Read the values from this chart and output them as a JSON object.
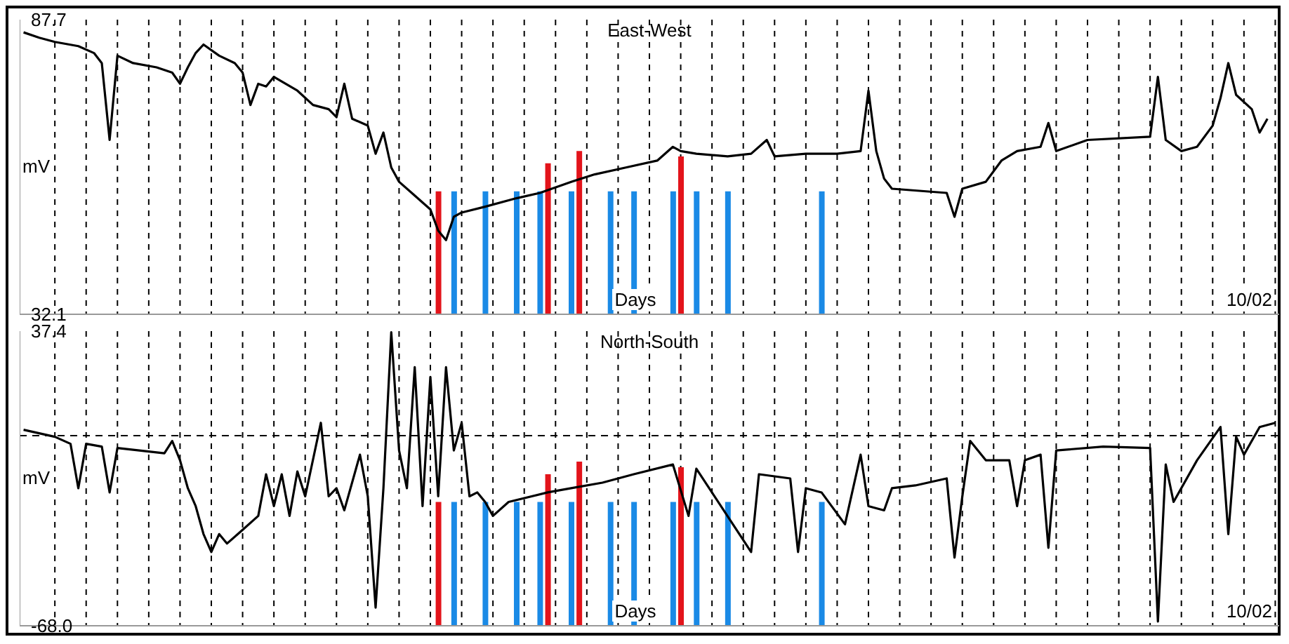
{
  "chart_data": [
    {
      "type": "line",
      "title": "East-West",
      "xlabel": "Days",
      "ylabel": "mV",
      "annotations": [
        "10/02"
      ],
      "ylim": [
        32.1,
        87.7
      ],
      "yticks": [
        32.1,
        87.7
      ],
      "grid": "x",
      "categories": [
        null,
        null,
        null,
        null,
        null,
        null,
        null,
        null,
        null,
        null,
        null,
        null,
        null,
        null,
        null,
        null,
        null,
        null,
        null,
        null,
        null,
        null,
        null,
        null,
        null,
        null,
        null,
        null,
        null,
        null,
        null,
        null,
        null,
        null,
        null,
        null,
        null,
        null,
        null,
        null,
        null,
        null,
        null,
        null,
        null,
        null,
        null,
        null,
        null,
        null,
        null,
        null,
        null,
        null,
        null,
        null,
        null,
        null,
        null,
        null,
        null,
        null,
        null,
        null,
        null,
        null,
        null,
        null,
        null,
        null,
        null,
        null,
        null,
        null,
        null,
        null,
        null,
        null,
        null,
        null,
        null,
        null,
        null,
        null,
        null,
        null,
        null,
        null,
        null,
        null,
        null,
        null,
        null,
        null,
        null,
        null,
        null,
        null,
        null,
        null,
        null,
        null,
        null,
        null,
        null,
        null,
        null,
        null,
        null,
        null,
        null,
        null,
        null,
        null,
        null,
        null,
        null,
        null,
        null,
        null,
        null,
        null,
        null,
        null,
        null,
        null,
        null,
        null,
        null,
        null,
        null,
        null,
        null,
        null,
        null,
        null,
        null,
        null,
        null,
        null,
        null,
        null,
        null,
        null,
        null,
        null,
        null,
        null,
        null,
        null,
        null,
        null,
        null,
        null,
        null,
        null,
        null,
        null,
        null,
        null,
        null
      ],
      "series": [
        {
          "color": "#000000",
          "values": [
            85.3,
            null,
            84.3,
            null,
            83.5,
            null,
            null,
            82.7,
            null,
            81.4,
            79.5,
            65.0,
            80.9,
            null,
            79.5,
            null,
            null,
            78.7,
            null,
            77.7,
            75.6,
            78.7,
            81.4,
            83.0,
            null,
            80.9,
            null,
            79.5,
            77.7,
            71.6,
            75.6,
            75.1,
            76.9,
            null,
            null,
            74.3,
            null,
            71.6,
            null,
            70.8,
            69.3,
            75.6,
            69.0,
            null,
            67.7,
            62.4,
            66.4,
            59.8,
            57.1,
            null,
            54.5,
            null,
            51.9,
            47.9,
            46.1,
            50.5,
            51.3,
            null,
            null,
            52.4,
            null,
            null,
            null,
            54.0,
            null,
            null,
            55.0,
            null,
            null,
            null,
            57.1,
            null,
            null,
            58.5,
            null,
            null,
            null,
            59.8,
            null,
            null,
            null,
            61.1,
            null,
            63.7,
            62.9,
            null,
            62.4,
            null,
            null,
            null,
            61.9,
            null,
            null,
            62.4,
            null,
            65.0,
            61.9,
            null,
            null,
            null,
            62.4,
            null,
            null,
            null,
            62.4,
            null,
            null,
            62.9,
            74.3,
            62.9,
            57.7,
            55.8,
            null,
            null,
            null,
            null,
            null,
            null,
            55.0,
            50.5,
            55.8,
            null,
            null,
            57.1,
            null,
            61.1,
            null,
            62.9,
            null,
            null,
            63.7,
            68.2,
            62.9,
            null,
            null,
            null,
            65.0,
            null,
            null,
            null,
            null,
            null,
            null,
            null,
            65.6,
            76.9,
            65.0,
            null,
            62.9,
            null,
            63.7,
            null,
            67.7,
            72.9,
            79.5,
            73.5,
            null,
            70.8,
            66.4,
            69.0,
            null
          ]
        },
        {
          "type": "bar",
          "color": "#1a8ae6",
          "values": [
            null,
            null,
            null,
            null,
            null,
            null,
            null,
            null,
            null,
            null,
            null,
            null,
            null,
            null,
            null,
            null,
            null,
            null,
            null,
            null,
            null,
            null,
            null,
            null,
            null,
            null,
            null,
            null,
            null,
            null,
            null,
            null,
            null,
            null,
            null,
            null,
            null,
            null,
            null,
            null,
            null,
            null,
            null,
            null,
            null,
            null,
            null,
            null,
            null,
            null,
            null,
            null,
            null,
            null,
            null,
            23.2,
            null,
            null,
            null,
            23.2,
            null,
            null,
            null,
            23.2,
            null,
            null,
            23.2,
            null,
            null,
            null,
            23.2,
            null,
            null,
            null,
            null,
            23.2,
            null,
            null,
            23.2,
            null,
            null,
            null,
            null,
            23.2,
            null,
            null,
            23.2,
            null,
            null,
            null,
            23.2,
            null,
            null,
            null,
            null,
            null,
            null,
            null,
            null,
            null,
            null,
            null,
            23.2,
            null,
            null,
            null,
            null,
            null,
            null,
            null,
            null,
            null,
            null,
            null,
            null,
            null,
            null,
            null,
            null,
            null,
            null,
            null,
            null,
            null,
            null,
            null,
            null,
            null,
            null,
            null,
            null,
            null,
            null,
            null,
            null,
            null,
            null,
            null,
            null,
            null,
            null,
            null,
            null,
            null,
            null,
            null,
            null,
            null,
            null,
            null,
            null,
            null,
            null,
            null,
            null,
            null,
            null,
            null,
            null,
            null,
            null
          ],
          "base": [
            null,
            null,
            null,
            null,
            null,
            null,
            null,
            null,
            null,
            null,
            null,
            null,
            null,
            null,
            null,
            null,
            null,
            null,
            null,
            null,
            null,
            null,
            null,
            null,
            null,
            null,
            null,
            null,
            null,
            null,
            null,
            null,
            null,
            null,
            null,
            null,
            null,
            null,
            null,
            null,
            null,
            null,
            null,
            null,
            null,
            null,
            null,
            null,
            null,
            null,
            null,
            null,
            null,
            null,
            null,
            32.1,
            null,
            null,
            null,
            32.1,
            null,
            null,
            null,
            32.1,
            null,
            null,
            32.1,
            null,
            null,
            null,
            32.1,
            null,
            null,
            null,
            null,
            32.1,
            null,
            null,
            32.1,
            null,
            null,
            null,
            null,
            32.1,
            null,
            null,
            32.1,
            null,
            null,
            null,
            32.1,
            null,
            null,
            null,
            null,
            null,
            null,
            null,
            null,
            null,
            null,
            null,
            32.1,
            null,
            null,
            null,
            null,
            null,
            null,
            null,
            null,
            null,
            null,
            null,
            null,
            null,
            null,
            null,
            null,
            null,
            null,
            null,
            null,
            null,
            null,
            null,
            null,
            null,
            null,
            null,
            null,
            null,
            null,
            null,
            null,
            null,
            null,
            null,
            null,
            null,
            null,
            null,
            null,
            null,
            null,
            null,
            null,
            null,
            null,
            null,
            null,
            null,
            null,
            null,
            null,
            null,
            null,
            null,
            null,
            null,
            null
          ]
        },
        {
          "type": "bar",
          "color": "#e3141b",
          "values": [
            null,
            null,
            null,
            null,
            null,
            null,
            null,
            null,
            null,
            null,
            null,
            null,
            null,
            null,
            null,
            null,
            null,
            null,
            null,
            null,
            null,
            null,
            null,
            null,
            null,
            null,
            null,
            null,
            null,
            null,
            null,
            null,
            null,
            null,
            null,
            null,
            null,
            null,
            null,
            null,
            null,
            null,
            null,
            null,
            null,
            null,
            null,
            null,
            null,
            null,
            null,
            null,
            null,
            23.2,
            null,
            null,
            null,
            null,
            null,
            null,
            null,
            null,
            null,
            null,
            null,
            null,
            null,
            28.5,
            null,
            null,
            null,
            30.8,
            null,
            null,
            null,
            null,
            null,
            null,
            null,
            null,
            null,
            null,
            null,
            null,
            29.8,
            null,
            null,
            null,
            null,
            null,
            null,
            null,
            null,
            null,
            null,
            null,
            null,
            null,
            null,
            null,
            null,
            null,
            null,
            null,
            null,
            null,
            null,
            null,
            null,
            null,
            null,
            null,
            null,
            null,
            null,
            null,
            null,
            null,
            null,
            null,
            null,
            null,
            null,
            null,
            null,
            null,
            null,
            null,
            null,
            null,
            null,
            null,
            null,
            null,
            null,
            null,
            null,
            null,
            null,
            null,
            null,
            null,
            null,
            null,
            null,
            null,
            null,
            null,
            null,
            null,
            null,
            null,
            null,
            null,
            null,
            null,
            null,
            null,
            null,
            null,
            null
          ],
          "base": [
            null,
            null,
            null,
            null,
            null,
            null,
            null,
            null,
            null,
            null,
            null,
            null,
            null,
            null,
            null,
            null,
            null,
            null,
            null,
            null,
            null,
            null,
            null,
            null,
            null,
            null,
            null,
            null,
            null,
            null,
            null,
            null,
            null,
            null,
            null,
            null,
            null,
            null,
            null,
            null,
            null,
            null,
            null,
            null,
            null,
            null,
            null,
            null,
            null,
            null,
            null,
            null,
            null,
            32.1,
            null,
            null,
            null,
            null,
            null,
            null,
            null,
            null,
            null,
            null,
            null,
            null,
            null,
            32.1,
            null,
            null,
            null,
            32.1,
            null,
            null,
            null,
            null,
            null,
            null,
            null,
            null,
            null,
            null,
            null,
            null,
            32.1,
            null,
            null,
            null,
            null,
            null,
            null,
            null,
            null,
            null,
            null,
            null,
            null,
            null,
            null,
            null,
            null,
            null,
            null,
            null,
            null,
            null,
            null,
            null,
            null,
            null,
            null,
            null,
            null,
            null,
            null,
            null,
            null,
            null,
            null,
            null,
            null,
            null,
            null,
            null,
            null,
            null,
            null,
            null,
            null,
            null,
            null,
            null,
            null,
            null,
            null,
            null,
            null,
            null,
            null,
            null,
            null,
            null,
            null,
            null,
            null,
            null,
            null,
            null,
            null,
            null,
            null,
            null,
            null,
            null,
            null,
            null,
            null,
            null,
            null,
            null,
            null
          ]
        }
      ]
    },
    {
      "type": "line",
      "title": "North-South",
      "xlabel": "Days",
      "ylabel": "mV",
      "annotations": [
        "10/02"
      ],
      "ylim": [
        -68.0,
        37.4
      ],
      "yticks": [
        {
          "value": -68.0,
          "label": "-68.0"
        },
        37.4
      ],
      "grid": "x",
      "categories": [
        null,
        null,
        null,
        null,
        null,
        null,
        null,
        null,
        null,
        null,
        null,
        null,
        null,
        null,
        null,
        null,
        null,
        null,
        null,
        null,
        null,
        null,
        null,
        null,
        null,
        null,
        null,
        null,
        null,
        null,
        null,
        null,
        null,
        null,
        null,
        null,
        null,
        null,
        null,
        null,
        null,
        null,
        null,
        null,
        null,
        null,
        null,
        null,
        null,
        null,
        null,
        null,
        null,
        null,
        null,
        null,
        null,
        null,
        null,
        null,
        null,
        null,
        null,
        null,
        null,
        null,
        null,
        null,
        null,
        null,
        null,
        null,
        null,
        null,
        null,
        null,
        null,
        null,
        null,
        null,
        null,
        null,
        null,
        null,
        null,
        null,
        null,
        null,
        null,
        null,
        null,
        null,
        null,
        null,
        null,
        null,
        null,
        null,
        null,
        null,
        null,
        null,
        null,
        null,
        null,
        null,
        null,
        null,
        null,
        null,
        null,
        null,
        null,
        null,
        null,
        null,
        null,
        null,
        null,
        null,
        null,
        null,
        null,
        null,
        null,
        null,
        null,
        null,
        null,
        null,
        null,
        null,
        null,
        null,
        null,
        null,
        null,
        null,
        null,
        null,
        null,
        null,
        null,
        null,
        null,
        null,
        null,
        null,
        null,
        null,
        null,
        null,
        null,
        null,
        null,
        null,
        null,
        null,
        null,
        null,
        null
      ],
      "series": [
        {
          "color": "#000000",
          "values": [
            2.1,
            null,
            null,
            null,
            -0.4,
            null,
            -2.9,
            -18.8,
            -2.9,
            null,
            -3.9,
            -20.3,
            -4.4,
            null,
            null,
            null,
            null,
            null,
            -6.3,
            -1.9,
            -8.8,
            -18.8,
            -25.2,
            -35.2,
            -41.6,
            -35.2,
            -38.6,
            null,
            -33.7,
            null,
            -28.7,
            -13.8,
            -25.2,
            -13.8,
            -28.7,
            -12.8,
            -21.7,
            null,
            4.6,
            -21.7,
            -18.8,
            -26.7,
            null,
            -6.8,
            -21.7,
            -61.5,
            -18.8,
            37.0,
            -5.3,
            -18.8,
            24.5,
            -25.2,
            21.0,
            -21.7,
            24.5,
            -5.3,
            4.6,
            -21.7,
            -20.3,
            -23.7,
            -28.7,
            null,
            -23.7,
            null,
            null,
            null,
            null,
            -20.3,
            null,
            null,
            -18.8,
            null,
            null,
            null,
            -16.8,
            null,
            null,
            null,
            -13.8,
            null,
            null,
            null,
            null,
            -10.3,
            null,
            -28.7,
            -11.8,
            null,
            null,
            null,
            null,
            null,
            null,
            -41.6,
            -13.8,
            null,
            null,
            null,
            -15.3,
            -41.6,
            -18.8,
            null,
            -20.3,
            null,
            null,
            -31.7,
            null,
            -6.8,
            -25.2,
            null,
            -26.7,
            -18.8,
            null,
            null,
            -17.8,
            null,
            null,
            null,
            -15.3,
            -43.6,
            -21.7,
            -1.9,
            null,
            -8.8,
            null,
            null,
            -8.8,
            -25.2,
            -8.8,
            null,
            -6.8,
            -40.1,
            -5.3,
            null,
            null,
            null,
            null,
            null,
            -3.9,
            null,
            null,
            null,
            null,
            null,
            -4.4,
            -66.5,
            -10.3,
            -23.7,
            null,
            null,
            -8.8,
            null,
            null,
            3.1,
            -35.2,
            -0.4,
            -6.8,
            null,
            3.1,
            null,
            4.6
          ]
        },
        {
          "type": "bar",
          "color": "#1a8ae6",
          "values": [
            null,
            null,
            null,
            null,
            null,
            null,
            null,
            null,
            null,
            null,
            null,
            null,
            null,
            null,
            null,
            null,
            null,
            null,
            null,
            null,
            null,
            null,
            null,
            null,
            null,
            null,
            null,
            null,
            null,
            null,
            null,
            null,
            null,
            null,
            null,
            null,
            null,
            null,
            null,
            null,
            null,
            null,
            null,
            null,
            null,
            null,
            null,
            null,
            null,
            null,
            null,
            null,
            null,
            null,
            null,
            44.3,
            null,
            null,
            null,
            44.3,
            null,
            null,
            null,
            44.3,
            null,
            null,
            44.3,
            null,
            null,
            null,
            44.3,
            null,
            null,
            null,
            null,
            44.3,
            null,
            null,
            44.3,
            null,
            null,
            null,
            null,
            44.3,
            null,
            null,
            44.3,
            null,
            null,
            null,
            44.3,
            null,
            null,
            null,
            null,
            null,
            null,
            null,
            null,
            null,
            null,
            null,
            44.3,
            null,
            null,
            null,
            null,
            null,
            null,
            null,
            null,
            null,
            null,
            null,
            null,
            null,
            null,
            null,
            null,
            null,
            null,
            null,
            null,
            null,
            null,
            null,
            null,
            null,
            null,
            null,
            null,
            null,
            null,
            null,
            null,
            null,
            null,
            null,
            null,
            null,
            null,
            null,
            null,
            null,
            null,
            null,
            null,
            null,
            null,
            null,
            null,
            null,
            null,
            null,
            null,
            null,
            null,
            null,
            null,
            null,
            null
          ],
          "base": [
            null,
            null,
            null,
            null,
            null,
            null,
            null,
            null,
            null,
            null,
            null,
            null,
            null,
            null,
            null,
            null,
            null,
            null,
            null,
            null,
            null,
            null,
            null,
            null,
            null,
            null,
            null,
            null,
            null,
            null,
            null,
            null,
            null,
            null,
            null,
            null,
            null,
            null,
            null,
            null,
            null,
            null,
            null,
            null,
            null,
            null,
            null,
            null,
            null,
            null,
            null,
            null,
            null,
            null,
            null,
            -68.0,
            null,
            null,
            null,
            -68.0,
            null,
            null,
            null,
            -68.0,
            null,
            null,
            -68.0,
            null,
            null,
            null,
            -68.0,
            null,
            null,
            null,
            null,
            -68.0,
            null,
            null,
            -68.0,
            null,
            null,
            null,
            null,
            -68.0,
            null,
            null,
            -68.0,
            null,
            null,
            null,
            -68.0,
            null,
            null,
            null,
            null,
            null,
            null,
            null,
            null,
            null,
            null,
            null,
            -68.0,
            null,
            null,
            null,
            null,
            null,
            null,
            null,
            null,
            null,
            null,
            null,
            null,
            null,
            null,
            null,
            null,
            null,
            null,
            null,
            null,
            null,
            null,
            null,
            null,
            null,
            null,
            null,
            null,
            null,
            null,
            null,
            null,
            null,
            null,
            null,
            null,
            null,
            null,
            null,
            null,
            null,
            null,
            null,
            null,
            null,
            null,
            null,
            null,
            null,
            null,
            null,
            null,
            null,
            null,
            null,
            null,
            null,
            null
          ]
        },
        {
          "type": "bar",
          "color": "#e3141b",
          "values": [
            null,
            null,
            null,
            null,
            null,
            null,
            null,
            null,
            null,
            null,
            null,
            null,
            null,
            null,
            null,
            null,
            null,
            null,
            null,
            null,
            null,
            null,
            null,
            null,
            null,
            null,
            null,
            null,
            null,
            null,
            null,
            null,
            null,
            null,
            null,
            null,
            null,
            null,
            null,
            null,
            null,
            null,
            null,
            null,
            null,
            null,
            null,
            null,
            null,
            null,
            null,
            null,
            null,
            44.3,
            null,
            null,
            null,
            null,
            null,
            null,
            null,
            null,
            null,
            null,
            null,
            null,
            null,
            54.2,
            null,
            null,
            null,
            58.7,
            null,
            null,
            null,
            null,
            null,
            null,
            null,
            null,
            null,
            null,
            null,
            null,
            56.7,
            null,
            null,
            null,
            null,
            null,
            null,
            null,
            null,
            null,
            null,
            null,
            null,
            null,
            null,
            null,
            null,
            null,
            null,
            null,
            null,
            null,
            null,
            null,
            null,
            null,
            null,
            null,
            null,
            null,
            null,
            null,
            null,
            null,
            null,
            null,
            null,
            null,
            null,
            null,
            null,
            null,
            null,
            null,
            null,
            null,
            null,
            null,
            null,
            null,
            null,
            null,
            null,
            null,
            null,
            null,
            null,
            null,
            null,
            null,
            null,
            null,
            null,
            null,
            null,
            null,
            null,
            null,
            null,
            null,
            null,
            null,
            null,
            null,
            null,
            null,
            null
          ],
          "base": [
            null,
            null,
            null,
            null,
            null,
            null,
            null,
            null,
            null,
            null,
            null,
            null,
            null,
            null,
            null,
            null,
            null,
            null,
            null,
            null,
            null,
            null,
            null,
            null,
            null,
            null,
            null,
            null,
            null,
            null,
            null,
            null,
            null,
            null,
            null,
            null,
            null,
            null,
            null,
            null,
            null,
            null,
            null,
            null,
            null,
            null,
            null,
            null,
            null,
            null,
            null,
            null,
            null,
            -68.0,
            null,
            null,
            null,
            null,
            null,
            null,
            null,
            null,
            null,
            null,
            null,
            null,
            null,
            -68.0,
            null,
            null,
            null,
            -68.0,
            null,
            null,
            null,
            null,
            null,
            null,
            null,
            null,
            null,
            null,
            null,
            null,
            -68.0,
            null,
            null,
            null,
            null,
            null,
            null,
            null,
            null,
            null,
            null,
            null,
            null,
            null,
            null,
            null,
            null,
            null,
            null,
            null,
            null,
            null,
            null,
            null,
            null,
            null,
            null,
            null,
            null,
            null,
            null,
            null,
            null,
            null,
            null,
            null,
            null,
            null,
            null,
            null,
            null,
            null,
            null,
            null,
            null,
            null,
            null,
            null,
            null,
            null,
            null,
            null,
            null,
            null,
            null,
            null,
            null,
            null,
            null,
            null,
            null,
            null,
            null,
            null,
            null,
            null,
            null,
            null,
            null,
            null,
            null,
            null,
            null,
            null,
            null,
            null,
            null
          ]
        }
      ],
      "ref_lines": [
        {
          "axis": "y",
          "value": 0,
          "label": null,
          "color": "#000000",
          "line_style": "dashed"
        }
      ]
    }
  ]
}
